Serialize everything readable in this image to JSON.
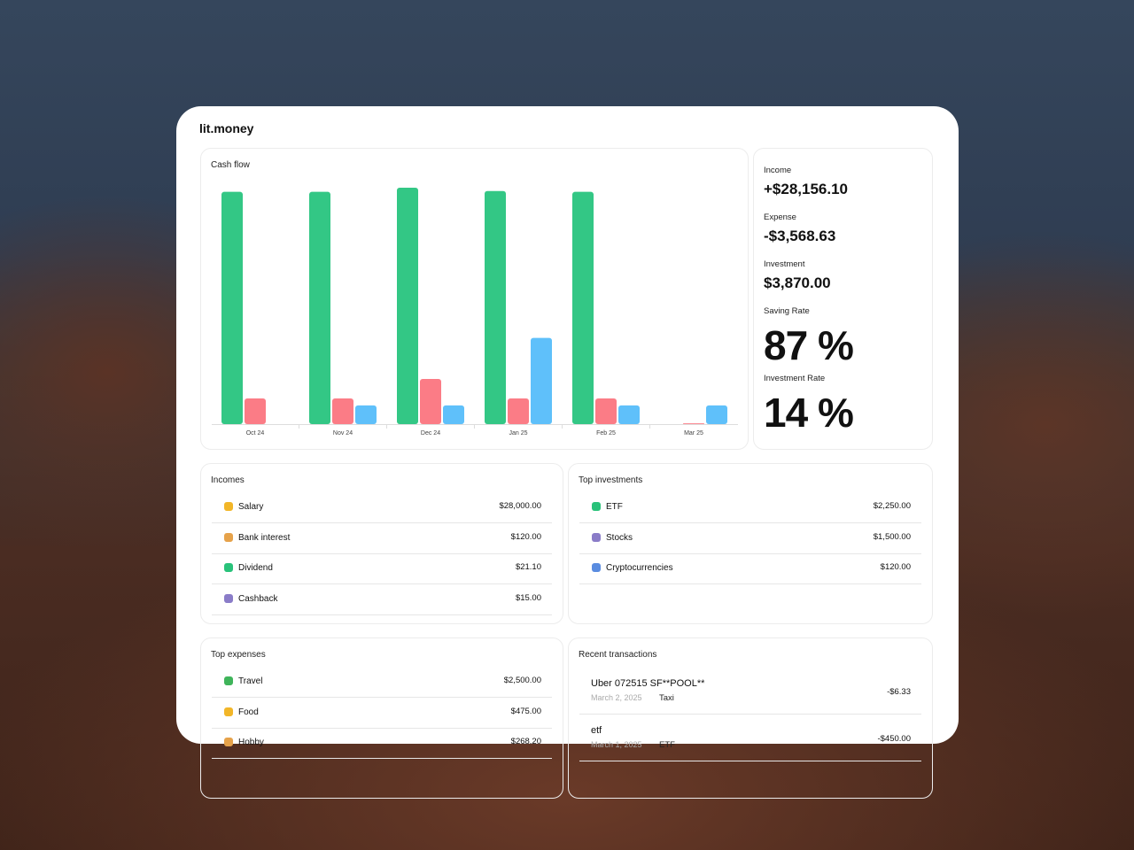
{
  "header": {
    "title": "lit.money"
  },
  "chart_data": {
    "type": "bar",
    "title": "Cash flow",
    "categories": [
      "Oct 24",
      "Nov 24",
      "Dec 24",
      "Jan 25",
      "Feb 25",
      "Mar 25"
    ],
    "series": [
      {
        "name": "Income",
        "color": "#33c785",
        "values": [
          28000,
          28000,
          28500,
          28100,
          28000,
          0
        ]
      },
      {
        "name": "Expense",
        "color": "#fb7c86",
        "values": [
          3100,
          3100,
          5450,
          3100,
          3100,
          100
        ]
      },
      {
        "name": "Investment",
        "color": "#5fc0fa",
        "values": [
          0,
          2250,
          2250,
          10400,
          2250,
          2250
        ]
      }
    ],
    "ylim": [
      0,
      28500
    ]
  },
  "summary": {
    "items": [
      {
        "label": "Income",
        "value": "+$28,156.10"
      },
      {
        "label": "Expense",
        "value": "-$3,568.63"
      },
      {
        "label": "Investment",
        "value": "$3,870.00"
      }
    ],
    "rates": [
      {
        "label": "Saving Rate",
        "value": "87 %"
      },
      {
        "label": "Investment Rate",
        "value": "14 %"
      }
    ]
  },
  "incomes": {
    "title": "Incomes",
    "rows": [
      {
        "name": "Salary",
        "amount": "$28,000.00"
      },
      {
        "name": "Bank interest",
        "amount": "$120.00"
      },
      {
        "name": "Dividend",
        "amount": "$21.10"
      },
      {
        "name": "Cashback",
        "amount": "$15.00"
      }
    ]
  },
  "top_investments": {
    "title": "Top investments",
    "rows": [
      {
        "name": "ETF",
        "amount": "$2,250.00"
      },
      {
        "name": "Stocks",
        "amount": "$1,500.00"
      },
      {
        "name": "Cryptocurrencies",
        "amount": "$120.00"
      }
    ]
  },
  "top_expenses": {
    "title": "Top expenses",
    "rows": [
      {
        "name": "Travel",
        "amount": "$2,500.00"
      },
      {
        "name": "Food",
        "amount": "$475.00"
      },
      {
        "name": "Hobby",
        "amount": "$268.20"
      }
    ]
  },
  "recent_transactions": {
    "title": "Recent transactions",
    "rows": [
      {
        "name": "Uber 072515 SF**POOL**",
        "date": "March 2, 2025",
        "category": "Taxi",
        "amount": "-$6.33"
      },
      {
        "name": "etf",
        "date": "March 1, 2025",
        "category": "ETF",
        "amount": "-$450.00"
      }
    ]
  }
}
